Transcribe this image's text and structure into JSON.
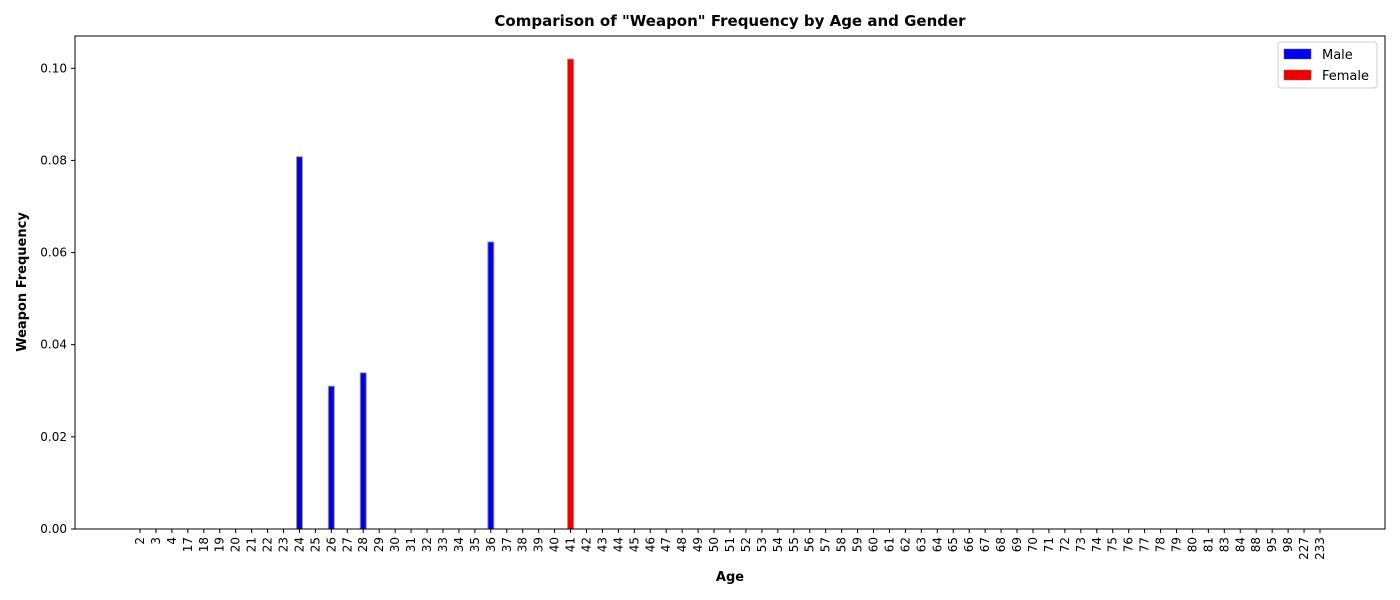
{
  "chart_data": {
    "type": "bar",
    "title": "Comparison of \"Weapon\" Frequency by Age and Gender",
    "xlabel": "Age",
    "ylabel": "Weapon Frequency",
    "categories": [
      "2",
      "3",
      "4",
      "17",
      "18",
      "19",
      "20",
      "21",
      "22",
      "23",
      "24",
      "25",
      "26",
      "27",
      "28",
      "29",
      "30",
      "31",
      "32",
      "33",
      "34",
      "35",
      "36",
      "37",
      "38",
      "39",
      "40",
      "41",
      "42",
      "43",
      "44",
      "45",
      "46",
      "47",
      "48",
      "49",
      "50",
      "51",
      "52",
      "53",
      "54",
      "55",
      "56",
      "57",
      "58",
      "59",
      "60",
      "61",
      "62",
      "63",
      "64",
      "65",
      "66",
      "67",
      "68",
      "69",
      "70",
      "71",
      "72",
      "73",
      "74",
      "75",
      "76",
      "77",
      "78",
      "79",
      "80",
      "81",
      "83",
      "84",
      "88",
      "95",
      "98",
      "227",
      "233"
    ],
    "series": [
      {
        "name": "Male",
        "color": "#0000ee",
        "values": [
          0,
          0,
          0,
          0,
          0,
          0,
          0,
          0,
          0,
          0,
          0.0808,
          0,
          0.031,
          0,
          0.0339,
          0,
          0,
          0,
          0,
          0,
          0,
          0,
          0.0623,
          0,
          0,
          0,
          0,
          0,
          0,
          0,
          0,
          0,
          0,
          0,
          0,
          0,
          0,
          0,
          0,
          0,
          0,
          0,
          0,
          0,
          0,
          0,
          0,
          0,
          0,
          0,
          0,
          0,
          0,
          0,
          0,
          0,
          0,
          0,
          0,
          0,
          0,
          0,
          0,
          0,
          0,
          0,
          0,
          0,
          0,
          0,
          0,
          0,
          0,
          0,
          0
        ]
      },
      {
        "name": "Female",
        "color": "#ee0000",
        "values": [
          0,
          0,
          0,
          0,
          0,
          0,
          0,
          0,
          0,
          0,
          0,
          0,
          0,
          0,
          0,
          0,
          0,
          0,
          0,
          0,
          0,
          0,
          0,
          0,
          0,
          0,
          0,
          0.102,
          0,
          0,
          0,
          0,
          0,
          0,
          0,
          0,
          0,
          0,
          0,
          0,
          0,
          0,
          0,
          0,
          0,
          0,
          0,
          0,
          0,
          0,
          0,
          0,
          0,
          0,
          0,
          0,
          0,
          0,
          0,
          0,
          0,
          0,
          0,
          0,
          0,
          0,
          0,
          0,
          0,
          0,
          0,
          0,
          0,
          0,
          0
        ]
      }
    ],
    "ylim": [
      0,
      0.107
    ],
    "yticks": [
      "0.00",
      "0.02",
      "0.04",
      "0.06",
      "0.08",
      "0.10"
    ],
    "grid": false,
    "legend_position": "top-right"
  }
}
